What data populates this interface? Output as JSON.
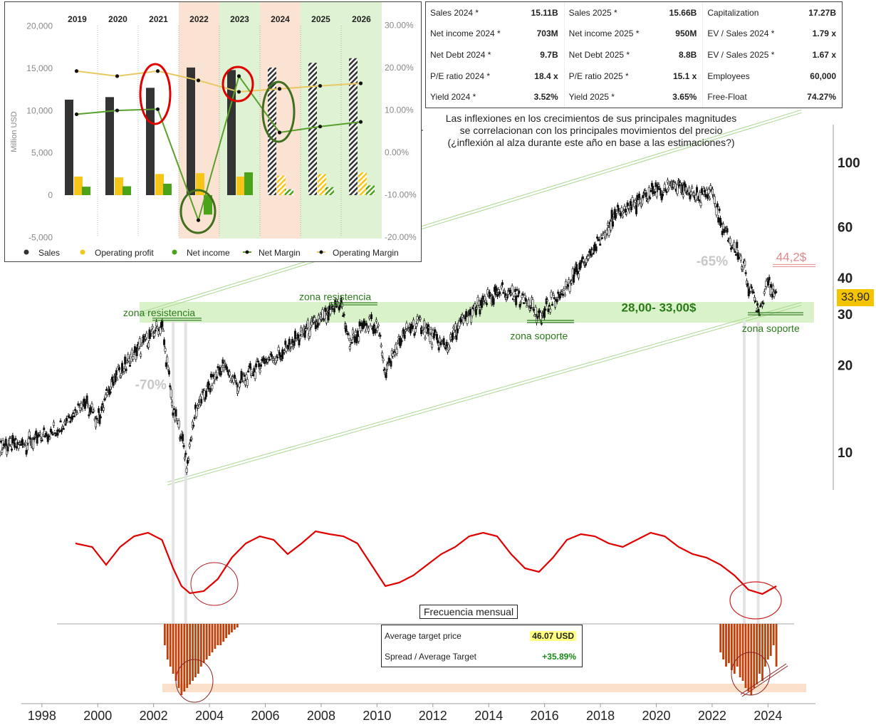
{
  "metrics": [
    {
      "label": "Sales 2024 *",
      "value": "15.11B"
    },
    {
      "label": "Sales 2025 *",
      "value": "15.66B"
    },
    {
      "label": "Capitalization",
      "value": "17.27B"
    },
    {
      "label": "Net income 2024 *",
      "value": "703M"
    },
    {
      "label": "Net income 2025 *",
      "value": "950M"
    },
    {
      "label": "EV / Sales 2024 *",
      "value": "1.79 x"
    },
    {
      "label": "Net Debt 2024 *",
      "value": "9.7B"
    },
    {
      "label": "Net Debt 2025 *",
      "value": "8.8B"
    },
    {
      "label": "EV / Sales 2025 *",
      "value": "1.67 x"
    },
    {
      "label": "P/E ratio 2024 *",
      "value": "18.4 x"
    },
    {
      "label": "P/E ratio 2025 *",
      "value": "15.1 x"
    },
    {
      "label": "Employees",
      "value": "60,000"
    },
    {
      "label": "Yield 2024 *",
      "value": "3.52%"
    },
    {
      "label": "Yield 2025 *",
      "value": "3.65%"
    },
    {
      "label": "Free-Float",
      "value": "74.27%"
    }
  ],
  "note": {
    "line1": "Las inflexiones en los crecimientos de sus principales magnitudes",
    "line2": "se correlacionan con los principales movimientos del precio",
    "line3": "(¿inflexión al alza durante este año en base a las estimaciones?)"
  },
  "targets": {
    "avg_label": "Average target price",
    "avg_value": "46.07  USD",
    "spread_label": "Spread / Average Target",
    "spread_value": "+35.89%"
  },
  "freq_title": "Frecuencia mensual",
  "current_price_label": "33,90",
  "colors": {
    "sales": "#333333",
    "operating_profit": "#f5c518",
    "net_income": "#4aa319",
    "net_margin_line": "#5aa02c",
    "operating_margin_line": "#e8c860",
    "zone_fill": "#d4f0c0",
    "channel": "#a8d890",
    "oscillator": "#e00000",
    "histogram": "#c0400a",
    "zone_text": "#2a7a1a"
  },
  "chart_data": [
    {
      "type": "bar",
      "name": "fundamentals",
      "categories": [
        "2019",
        "2020",
        "2021",
        "2022",
        "2023",
        "2024",
        "2025",
        "2026"
      ],
      "ylabel": "Million USD",
      "ylim": [
        -5000,
        20000
      ],
      "y2lim": [
        -20,
        30
      ],
      "yticks": [
        "20,000",
        "15,000",
        "10,000",
        "5,000",
        "0",
        "-5,000"
      ],
      "y2ticks": [
        "30.00%",
        "20.00%",
        "10.00%",
        "0.00%",
        "-10.00%",
        "-20.00%"
      ],
      "estimate_from": "2024",
      "series": [
        {
          "name": "Sales",
          "values": [
            11300,
            11600,
            12700,
            15100,
            14800,
            15100,
            15660,
            16200
          ]
        },
        {
          "name": "Operating profit",
          "values": [
            2200,
            2100,
            2500,
            2600,
            2200,
            2300,
            2500,
            2700
          ]
        },
        {
          "name": "Net income",
          "values": [
            1000,
            1050,
            1350,
            -2300,
            2700,
            700,
            950,
            1150
          ]
        },
        {
          "name": "Net Margin",
          "axis": "right",
          "values": [
            9.0,
            9.9,
            10.2,
            -16.0,
            18.0,
            4.7,
            6.1,
            7.2
          ]
        },
        {
          "name": "Operating Margin",
          "axis": "right",
          "values": [
            19.2,
            18.0,
            19.2,
            17.0,
            14.3,
            15.0,
            15.7,
            16.3
          ]
        }
      ]
    },
    {
      "type": "line",
      "name": "price",
      "scale": "log",
      "xlim": [
        1996.5,
        2025.7
      ],
      "ylim": [
        8,
        130
      ],
      "xticks": [
        "1998",
        "2000",
        "2002",
        "2004",
        "2006",
        "2008",
        "2010",
        "2012",
        "2014",
        "2016",
        "2018",
        "2020",
        "2022",
        "2024"
      ],
      "yticks": [
        "100",
        "60",
        "40",
        "30",
        "20",
        "10"
      ],
      "x": [
        1996.5,
        1997.5,
        1998.5,
        1999.5,
        2000.0,
        2000.5,
        2001.0,
        2001.5,
        2002.0,
        2002.3,
        2002.7,
        2003.0,
        2003.2,
        2003.5,
        2004.0,
        2004.5,
        2005.0,
        2005.5,
        2006.0,
        2006.5,
        2007.0,
        2007.5,
        2008.0,
        2008.7,
        2009.0,
        2009.5,
        2010.0,
        2010.3,
        2010.7,
        2011.0,
        2011.5,
        2012.0,
        2012.5,
        2013.0,
        2013.5,
        2014.0,
        2014.5,
        2015.0,
        2015.5,
        2015.8,
        2016.2,
        2016.7,
        2017.0,
        2017.5,
        2018.0,
        2018.5,
        2019.0,
        2019.5,
        2020.0,
        2020.2,
        2020.5,
        2021.0,
        2021.5,
        2022.0,
        2022.3,
        2022.7,
        2023.0,
        2023.3,
        2023.7,
        2024.0,
        2024.3
      ],
      "y": [
        10.5,
        10.8,
        12.0,
        15.0,
        13.0,
        17.5,
        20.0,
        23.0,
        26.0,
        27.5,
        14.0,
        11.5,
        9.0,
        14.0,
        17.0,
        20.0,
        17.0,
        19.0,
        21.0,
        21.5,
        24.0,
        26.5,
        28.5,
        33.0,
        24.0,
        27.0,
        28.0,
        19.0,
        23.0,
        26.0,
        28.0,
        25.0,
        23.0,
        28.0,
        31.0,
        34.0,
        36.0,
        35.0,
        33.0,
        28.5,
        33.0,
        36.0,
        40.0,
        46.0,
        55.0,
        65.0,
        70.0,
        74.0,
        82.0,
        78.0,
        85.0,
        80.0,
        76.0,
        80.0,
        62.0,
        52.0,
        48.0,
        38.0,
        31.0,
        40.0,
        34.0
      ],
      "current": 33.9,
      "target": 44.2,
      "target_label": "44,2$",
      "drawdowns": [
        {
          "label": "-70%",
          "x": 2001.9,
          "y": 16.5
        },
        {
          "label": "-65%",
          "x": 2022.0,
          "y": 44.0
        }
      ],
      "zone": {
        "low": 28.0,
        "high": 33.0,
        "label": "28,00- 33,00$"
      },
      "zone_labels": [
        {
          "label": "zona resistencia",
          "x": 2002.2,
          "y": 29.5
        },
        {
          "label": "zona resistencia",
          "x": 2008.5,
          "y": 33.5
        },
        {
          "label": "zona soporte",
          "x": 2015.8,
          "y": 24.5
        },
        {
          "label": "zona soporte",
          "x": 2024.1,
          "y": 26.0
        }
      ],
      "channel": {
        "upper": [
          [
            2001.5,
            30.0
          ],
          [
            2025.2,
            150.0
          ]
        ],
        "lower": [
          [
            2002.5,
            7.8
          ],
          [
            2025.2,
            32.5
          ]
        ]
      }
    },
    {
      "type": "line",
      "name": "oscillator",
      "x": [
        1999.2,
        1999.8,
        2000.3,
        2000.8,
        2001.3,
        2001.8,
        2002.3,
        2002.7,
        2003.0,
        2003.3,
        2003.8,
        2004.3,
        2004.8,
        2005.3,
        2005.8,
        2006.3,
        2006.8,
        2007.3,
        2007.8,
        2008.3,
        2008.8,
        2009.3,
        2009.8,
        2010.3,
        2010.8,
        2011.3,
        2011.8,
        2012.3,
        2012.8,
        2013.3,
        2013.8,
        2014.3,
        2014.8,
        2015.3,
        2015.8,
        2016.3,
        2016.8,
        2017.3,
        2017.8,
        2018.3,
        2018.8,
        2019.3,
        2019.8,
        2020.3,
        2020.8,
        2021.3,
        2021.8,
        2022.3,
        2022.8,
        2023.3,
        2023.8,
        2024.3
      ],
      "y": [
        0.75,
        0.7,
        0.45,
        0.7,
        0.85,
        0.9,
        0.8,
        0.4,
        0.15,
        0.05,
        0.08,
        0.25,
        0.55,
        0.75,
        0.85,
        0.8,
        0.6,
        0.75,
        0.92,
        0.88,
        0.85,
        0.75,
        0.45,
        0.15,
        0.2,
        0.3,
        0.45,
        0.6,
        0.7,
        0.85,
        0.9,
        0.85,
        0.6,
        0.4,
        0.35,
        0.55,
        0.8,
        0.88,
        0.85,
        0.75,
        0.7,
        0.8,
        0.9,
        0.85,
        0.7,
        0.6,
        0.55,
        0.45,
        0.3,
        0.1,
        0.04,
        0.15
      ]
    },
    {
      "type": "bar",
      "name": "monthly_frequency",
      "x": [
        2002.4,
        2002.5,
        2002.6,
        2002.7,
        2002.8,
        2002.9,
        2003.0,
        2003.1,
        2003.2,
        2003.3,
        2003.4,
        2003.5,
        2003.6,
        2003.7,
        2003.8,
        2003.9,
        2004.0,
        2004.1,
        2004.2,
        2004.3,
        2004.4,
        2004.5,
        2004.6,
        2004.7,
        2004.8,
        2004.9,
        2005.0,
        2022.3,
        2022.4,
        2022.5,
        2022.6,
        2022.7,
        2022.8,
        2022.9,
        2023.0,
        2023.1,
        2023.2,
        2023.3,
        2023.4,
        2023.5,
        2023.6,
        2023.7,
        2023.8,
        2023.9,
        2024.0,
        2024.1,
        2024.2,
        2024.3
      ],
      "values": [
        0.3,
        0.5,
        0.6,
        0.7,
        0.8,
        0.9,
        1.0,
        0.95,
        0.9,
        0.85,
        0.8,
        0.75,
        0.7,
        0.6,
        0.55,
        0.5,
        0.45,
        0.4,
        0.35,
        0.3,
        0.3,
        0.25,
        0.2,
        0.15,
        0.12,
        0.08,
        0.05,
        0.4,
        0.5,
        0.6,
        0.55,
        0.65,
        0.7,
        0.6,
        0.75,
        0.8,
        0.9,
        0.95,
        1.0,
        0.9,
        0.85,
        0.7,
        0.8,
        0.6,
        0.5,
        0.45,
        0.3,
        0.6
      ]
    }
  ]
}
